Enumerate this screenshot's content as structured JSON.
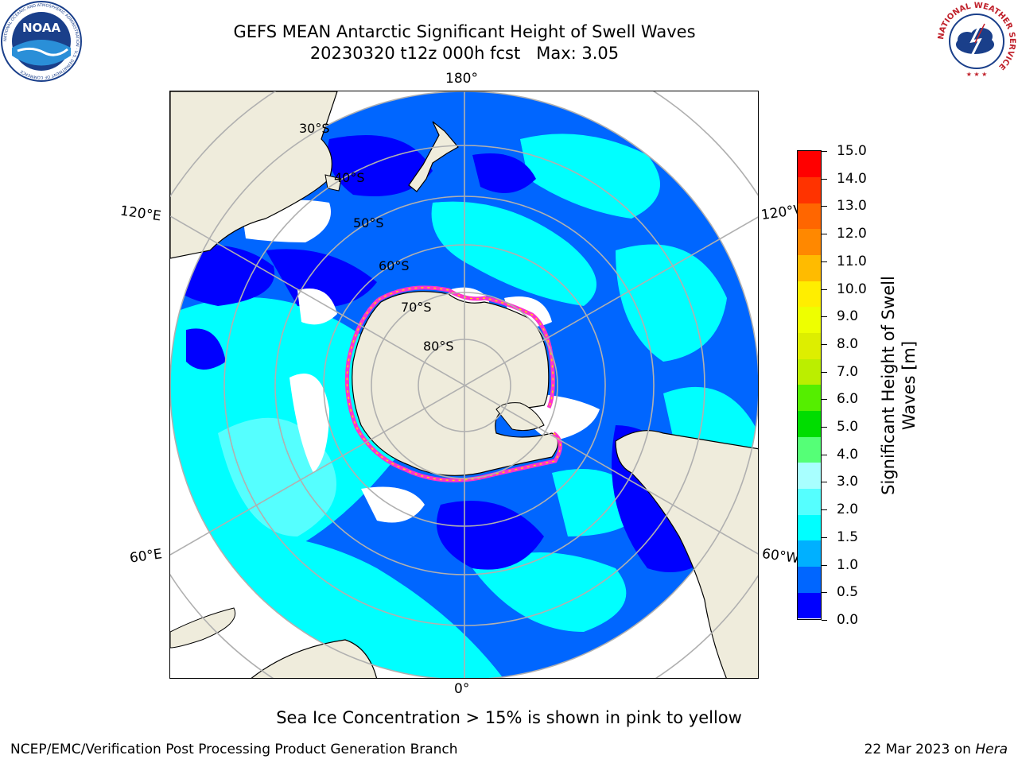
{
  "title": {
    "line1": "GEFS MEAN Antarctic Significant Height of Swell Waves",
    "line2": "20230320 t12z 000h fcst   Max: 3.05"
  },
  "logos": {
    "left": "noaa-logo",
    "left_text": "NOAA",
    "left_ring_text": "NATIONAL OCEANIC AND ATMOSPHERIC ADMINISTRATION · U.S. DEPARTMENT OF COMMERCE",
    "right": "nws-logo",
    "right_ring_text": "NATIONAL WEATHER SERVICE"
  },
  "map": {
    "projection": "south-polar-stereographic",
    "longitude_labels": {
      "top": "180°",
      "bottom": "0°",
      "upper_left": "120°E",
      "lower_left": "60°E",
      "upper_right": "120°W",
      "lower_right": "60°W"
    },
    "latitude_labels": [
      "30°S",
      "40°S",
      "50°S",
      "60°S",
      "70°S",
      "80°S"
    ],
    "colors": {
      "land": "#efecdc",
      "coast": "#000000",
      "grid": "#b0b0b0",
      "sea_ice_edge": [
        "#ff33cc",
        "#ffd700"
      ]
    }
  },
  "colorbar": {
    "title": "Significant Height of Swell Waves [m]",
    "levels": [
      {
        "from": 0.0,
        "to": 0.5,
        "color": "#0000ff"
      },
      {
        "from": 0.5,
        "to": 1.0,
        "color": "#0066ff"
      },
      {
        "from": 1.0,
        "to": 1.5,
        "color": "#00b0ff"
      },
      {
        "from": 1.5,
        "to": 2.0,
        "color": "#00ffff"
      },
      {
        "from": 2.0,
        "to": 2.5,
        "color": "#55ffff"
      },
      {
        "from": 2.5,
        "to": 3.0,
        "color": "#a8ffff"
      },
      {
        "from": 3.0,
        "to": 4.0,
        "color": "#55ff77"
      },
      {
        "from": 4.0,
        "to": 5.0,
        "color": "#00dd00"
      },
      {
        "from": 5.0,
        "to": 6.0,
        "color": "#55ee00"
      },
      {
        "from": 6.0,
        "to": 7.0,
        "color": "#bbee00"
      },
      {
        "from": 7.0,
        "to": 8.0,
        "color": "#ddee00"
      },
      {
        "from": 8.0,
        "to": 9.0,
        "color": "#eeff00"
      },
      {
        "from": 9.0,
        "to": 10.0,
        "color": "#ffee00"
      },
      {
        "from": 10.0,
        "to": 11.0,
        "color": "#ffbb00"
      },
      {
        "from": 11.0,
        "to": 12.0,
        "color": "#ff8800"
      },
      {
        "from": 12.0,
        "to": 13.0,
        "color": "#ff6600"
      },
      {
        "from": 13.0,
        "to": 14.0,
        "color": "#ff3300"
      },
      {
        "from": 14.0,
        "to": 15.0,
        "color": "#ff0000"
      }
    ],
    "tick_labels": [
      "0.0",
      "0.5",
      "1.0",
      "1.5",
      "2.0",
      "3.0",
      "4.0",
      "5.0",
      "6.0",
      "7.0",
      "8.0",
      "9.0",
      "10.0",
      "11.0",
      "12.0",
      "13.0",
      "14.0",
      "15.0"
    ],
    "min": 0.0,
    "max": 15.0
  },
  "notes": {
    "ice": "Sea Ice Concentration > 15% is shown in pink to yellow"
  },
  "footer": {
    "left": "NCEP/EMC/Verification Post Processing Product Generation Branch",
    "date": "22 Mar 2023 on ",
    "machine": "Hera"
  }
}
